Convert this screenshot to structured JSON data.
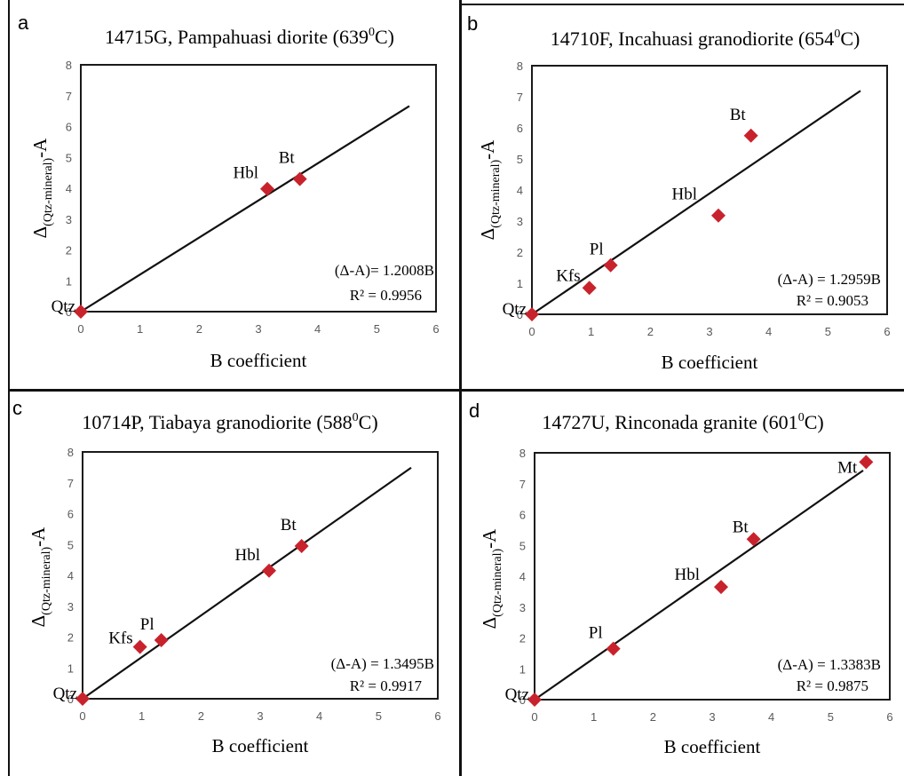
{
  "figure": {
    "line_color": "#111111",
    "marker_color": "#c8232c",
    "frame_color": "#1a1a1a",
    "tick_color": "#595959"
  },
  "chart_data": [
    {
      "panel_letter": "a",
      "type": "scatter",
      "title_main": "14715G, Pampahuasi diorite (639",
      "title_sup": "0",
      "title_tail": "C)",
      "xlabel": "B coefficient",
      "ylabel_main": "Δ",
      "ylabel_sub": "(Qtz-mineral)",
      "ylabel_tail": "-A",
      "xlim": [
        0,
        6
      ],
      "ylim": [
        0,
        8
      ],
      "xticks": [
        "0",
        "1",
        "2",
        "3",
        "4",
        "5",
        "6"
      ],
      "yticks": [
        "0",
        "1",
        "2",
        "3",
        "4",
        "5",
        "6",
        "7",
        "8"
      ],
      "points": [
        {
          "label": "Qtz",
          "x": 0,
          "y": 0
        },
        {
          "label": "Hbl",
          "x": 3.15,
          "y": 3.98
        },
        {
          "label": "Bt",
          "x": 3.7,
          "y": 4.3
        }
      ],
      "fit": {
        "slope": 1.2008,
        "x_end": 5.55
      },
      "equation": "(Δ-A)= 1.2008B",
      "r2": "R² = 0.9956"
    },
    {
      "panel_letter": "b",
      "type": "scatter",
      "title_main": "14710F, Incahuasi granodiorite (654",
      "title_sup": "0",
      "title_tail": "C)",
      "xlabel": "B coefficient",
      "ylabel_main": "Δ",
      "ylabel_sub": "(Qtz-mineral)",
      "ylabel_tail": "-A",
      "xlim": [
        0,
        6
      ],
      "ylim": [
        0,
        8
      ],
      "xticks": [
        "0",
        "1",
        "2",
        "3",
        "4",
        "5",
        "6"
      ],
      "yticks": [
        "0",
        "1",
        "2",
        "3",
        "4",
        "5",
        "6",
        "7",
        "8"
      ],
      "points": [
        {
          "label": "Qtz",
          "x": 0,
          "y": 0
        },
        {
          "label": "Kfs",
          "x": 0.97,
          "y": 0.85
        },
        {
          "label": "Pl",
          "x": 1.33,
          "y": 1.58
        },
        {
          "label": "Hbl",
          "x": 3.15,
          "y": 3.18
        },
        {
          "label": "Bt",
          "x": 3.7,
          "y": 5.75
        }
      ],
      "fit": {
        "slope": 1.2959,
        "x_end": 5.55
      },
      "equation": "(Δ-A) = 1.2959B",
      "r2": "R² = 0.9053"
    },
    {
      "panel_letter": "c",
      "type": "scatter",
      "title_main": "10714P, Tiabaya granodiorite (588",
      "title_sup": "0",
      "title_tail": "C)",
      "xlabel": "B coefficient",
      "ylabel_main": "Δ",
      "ylabel_sub": "(Qtz-mineral)",
      "ylabel_tail": "-A",
      "xlim": [
        0,
        6
      ],
      "ylim": [
        0,
        8
      ],
      "xticks": [
        "0",
        "1",
        "2",
        "3",
        "4",
        "5",
        "6"
      ],
      "yticks": [
        "0",
        "1",
        "2",
        "3",
        "4",
        "5",
        "6",
        "7",
        "8"
      ],
      "points": [
        {
          "label": "Qtz",
          "x": 0,
          "y": 0
        },
        {
          "label": "Kfs",
          "x": 0.97,
          "y": 1.68
        },
        {
          "label": "Pl",
          "x": 1.33,
          "y": 1.9
        },
        {
          "label": "Hbl",
          "x": 3.15,
          "y": 4.15
        },
        {
          "label": "Bt",
          "x": 3.7,
          "y": 4.95
        }
      ],
      "fit": {
        "slope": 1.3495,
        "x_end": 5.55
      },
      "equation": "(Δ-A) = 1.3495B",
      "r2": "R² = 0.9917"
    },
    {
      "panel_letter": "d",
      "type": "scatter",
      "title_main": "14727U, Rinconada granite (601",
      "title_sup": "0",
      "title_tail": "C)",
      "xlabel": "B coefficient",
      "ylabel_main": "Δ",
      "ylabel_sub": "(Qtz-mineral)",
      "ylabel_tail": "-A",
      "xlim": [
        0,
        6
      ],
      "ylim": [
        0,
        8
      ],
      "xticks": [
        "0",
        "1",
        "2",
        "3",
        "4",
        "5",
        "6"
      ],
      "yticks": [
        "0",
        "1",
        "2",
        "3",
        "4",
        "5",
        "6",
        "7",
        "8"
      ],
      "points": [
        {
          "label": "Qtz",
          "x": 0,
          "y": 0
        },
        {
          "label": "Pl",
          "x": 1.33,
          "y": 1.65
        },
        {
          "label": "Hbl",
          "x": 3.15,
          "y": 3.65
        },
        {
          "label": "Bt",
          "x": 3.7,
          "y": 5.2
        },
        {
          "label": "Mt",
          "x": 5.6,
          "y": 7.7
        }
      ],
      "fit": {
        "slope": 1.3383,
        "x_end": 5.55
      },
      "equation": "(Δ-A) = 1.3383B",
      "r2": "R² = 0.9875"
    }
  ]
}
